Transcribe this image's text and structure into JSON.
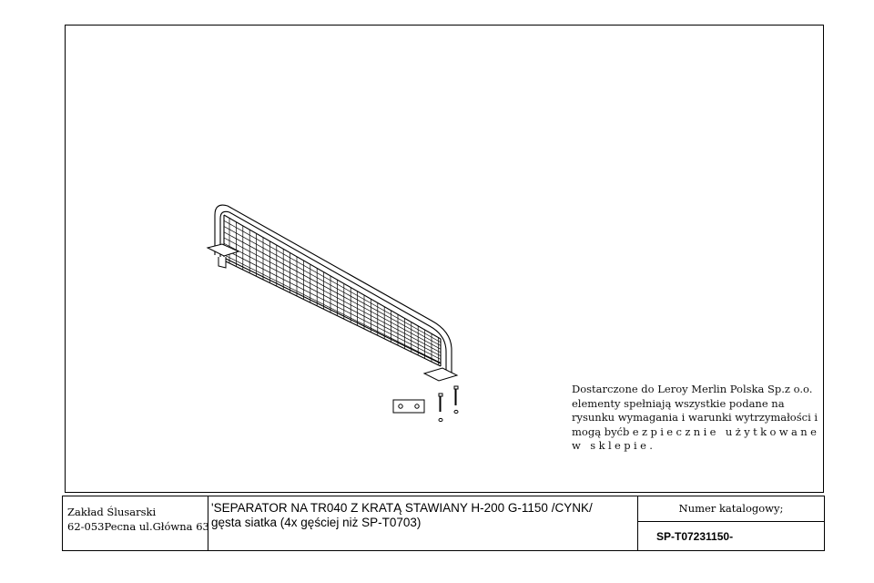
{
  "note": {
    "line1": "Dostarczone do Leroy Merlin Polska Sp.z o.o.",
    "line2": "elementy spełniają wszystkie podane na",
    "line3": "rysunku wymagania i warunki wytrzymałości i",
    "line4a": "mogą być",
    "line4b": "bezpiecznie użytkowane",
    "line5": "w sklepie."
  },
  "title_block": {
    "company_line1": "Zakład Ślusarski",
    "company_line2": "62-053Pecna ul.Główna 63",
    "description_line1": "'SEPARATOR NA TR040 Z KRATĄ STAWIANY H-200 G-1150 /CYNK/",
    "description_line2": "gęsta siatka (4x gęściej niż SP-T0703)",
    "catalog_label": "Numer katalogowy;",
    "catalog_number": "SP-T07231150-"
  },
  "drawing": {
    "subject": "mesh-separator-isometric",
    "parts": [
      "separator-frame",
      "wire-mesh",
      "base-plates",
      "mounting-plate",
      "bolts"
    ],
    "line_color": "#000000"
  }
}
